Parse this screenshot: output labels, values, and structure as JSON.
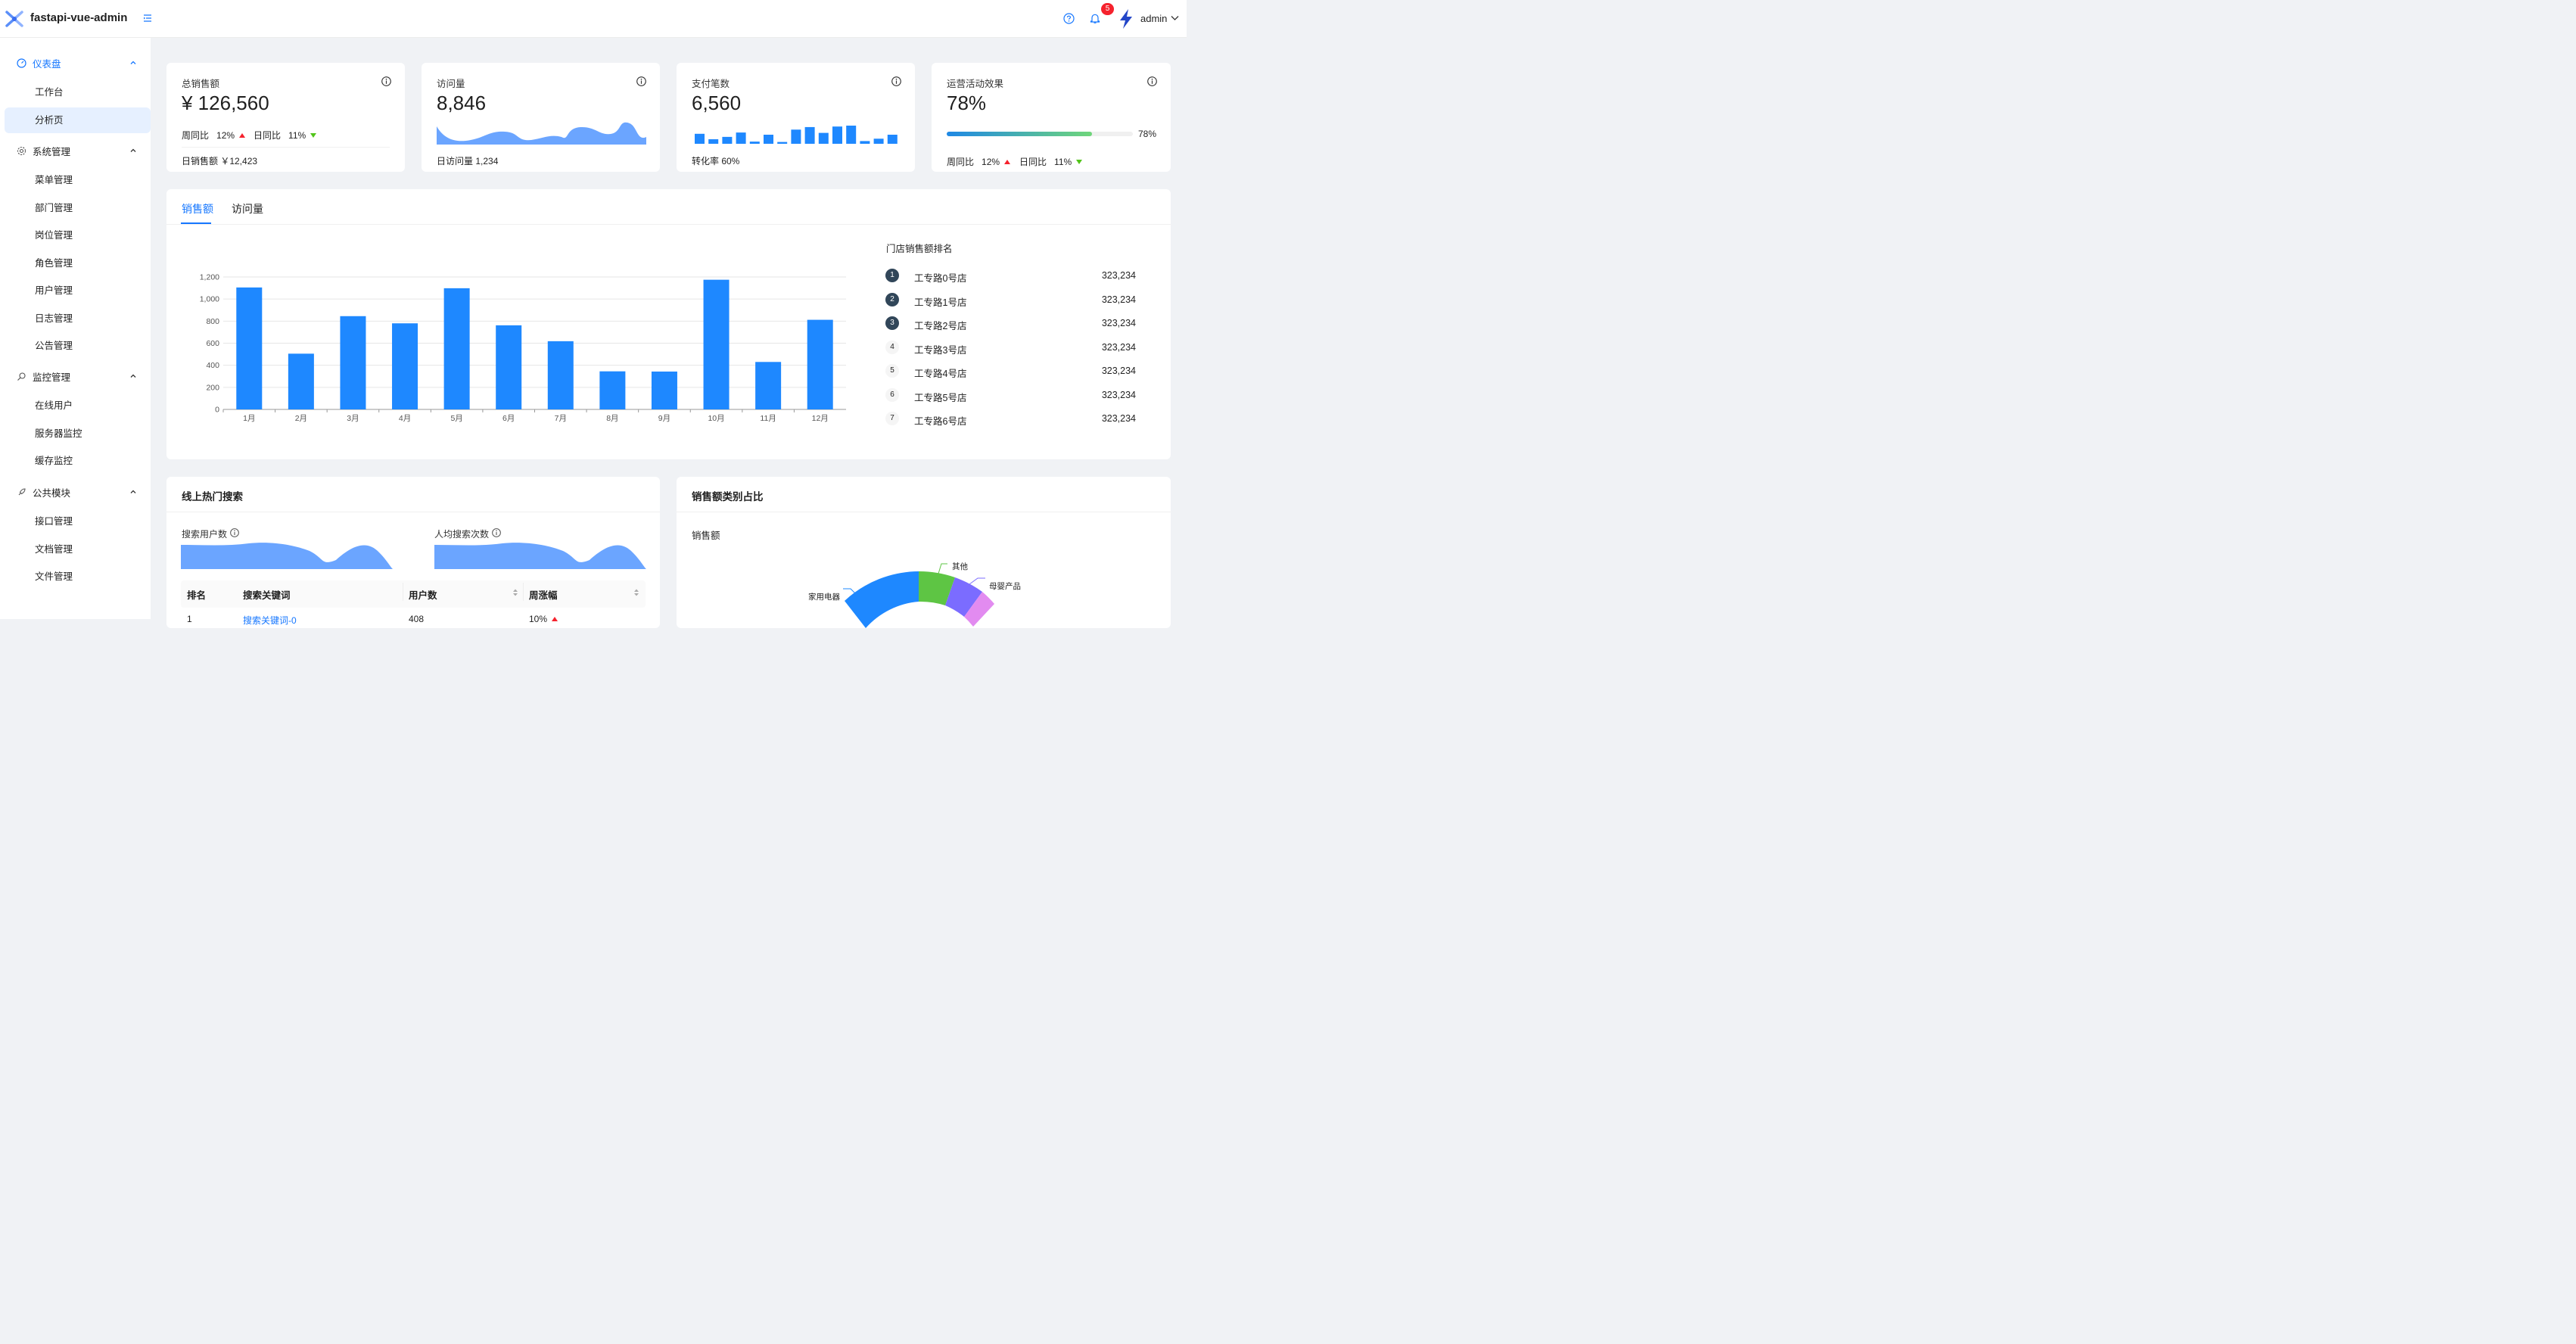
{
  "app": {
    "title": "fastapi-vue-admin",
    "user": "admin",
    "notification_count": "5",
    "accent": "#1677ff"
  },
  "sidebar": {
    "groups": [
      {
        "label": "仪表盘",
        "icon": "dashboard-icon"
      },
      {
        "label": "系统管理",
        "icon": "gear-icon"
      },
      {
        "label": "监控管理",
        "icon": "monitor-icon"
      },
      {
        "label": "公共模块",
        "icon": "rocket-icon"
      }
    ],
    "items": [
      "工作台",
      "分析页",
      "菜单管理",
      "部门管理",
      "岗位管理",
      "角色管理",
      "用户管理",
      "日志管理",
      "公告管理",
      "在线用户",
      "服务器监控",
      "缓存监控",
      "接口管理",
      "文档管理",
      "文件管理"
    ]
  },
  "stats": {
    "sales": {
      "title": "总销售额",
      "value": "¥ 126,560",
      "week_label": "周同比",
      "week": "12%",
      "day_label": "日同比",
      "day": "11%",
      "footer": "日销售额 ￥12,423"
    },
    "visits": {
      "title": "访问量",
      "value": "8,846",
      "footer": "日访问量 1,234"
    },
    "payments": {
      "title": "支付笔数",
      "value": "6,560",
      "footer": "转化率 60%",
      "bars": [
        0.55,
        0.25,
        0.38,
        0.62,
        0.12,
        0.5,
        0.1,
        0.78,
        0.92,
        0.6,
        0.95,
        1.0,
        0.15,
        0.28,
        0.5
      ]
    },
    "ops": {
      "title": "运营活动效果",
      "value": "78%",
      "progress": 0.78,
      "progress_label": "78%",
      "week_label": "周同比",
      "week": "12%",
      "day_label": "日同比",
      "day": "11%"
    }
  },
  "sales_panel": {
    "tabs": [
      "销售额",
      "访问量"
    ],
    "ranking_title": "门店销售额排名",
    "ranking": [
      {
        "no": "1",
        "name": "工专路0号店",
        "value": "323,234"
      },
      {
        "no": "2",
        "name": "工专路1号店",
        "value": "323,234"
      },
      {
        "no": "3",
        "name": "工专路2号店",
        "value": "323,234"
      },
      {
        "no": "4",
        "name": "工专路3号店",
        "value": "323,234"
      },
      {
        "no": "5",
        "name": "工专路4号店",
        "value": "323,234"
      },
      {
        "no": "6",
        "name": "工专路5号店",
        "value": "323,234"
      },
      {
        "no": "7",
        "name": "工专路6号店",
        "value": "323,234"
      }
    ]
  },
  "chart_data": {
    "type": "bar",
    "categories": [
      "1月",
      "2月",
      "3月",
      "4月",
      "5月",
      "6月",
      "7月",
      "8月",
      "9月",
      "10月",
      "11月",
      "12月"
    ],
    "values": [
      1105,
      505,
      845,
      780,
      1098,
      762,
      618,
      345,
      343,
      1175,
      430,
      812
    ],
    "ylim": [
      0,
      1200
    ],
    "yticks": [
      "0",
      "200",
      "400",
      "600",
      "800",
      "1,000",
      "1,200"
    ],
    "color": "#1e88ff",
    "grid": true
  },
  "hot_search": {
    "title": "线上热门搜索",
    "users_label": "搜索用户数",
    "avg_label": "人均搜索次数",
    "columns": [
      "排名",
      "搜索关键词",
      "用户数",
      "周涨幅"
    ],
    "first_row": {
      "rank": "1",
      "keyword": "搜索关键词-0",
      "users": "408",
      "change": "10%"
    }
  },
  "category": {
    "title": "销售额类别占比",
    "subtitle": "销售额",
    "labels": [
      "其他",
      "母婴产品",
      "家用电器"
    ]
  }
}
